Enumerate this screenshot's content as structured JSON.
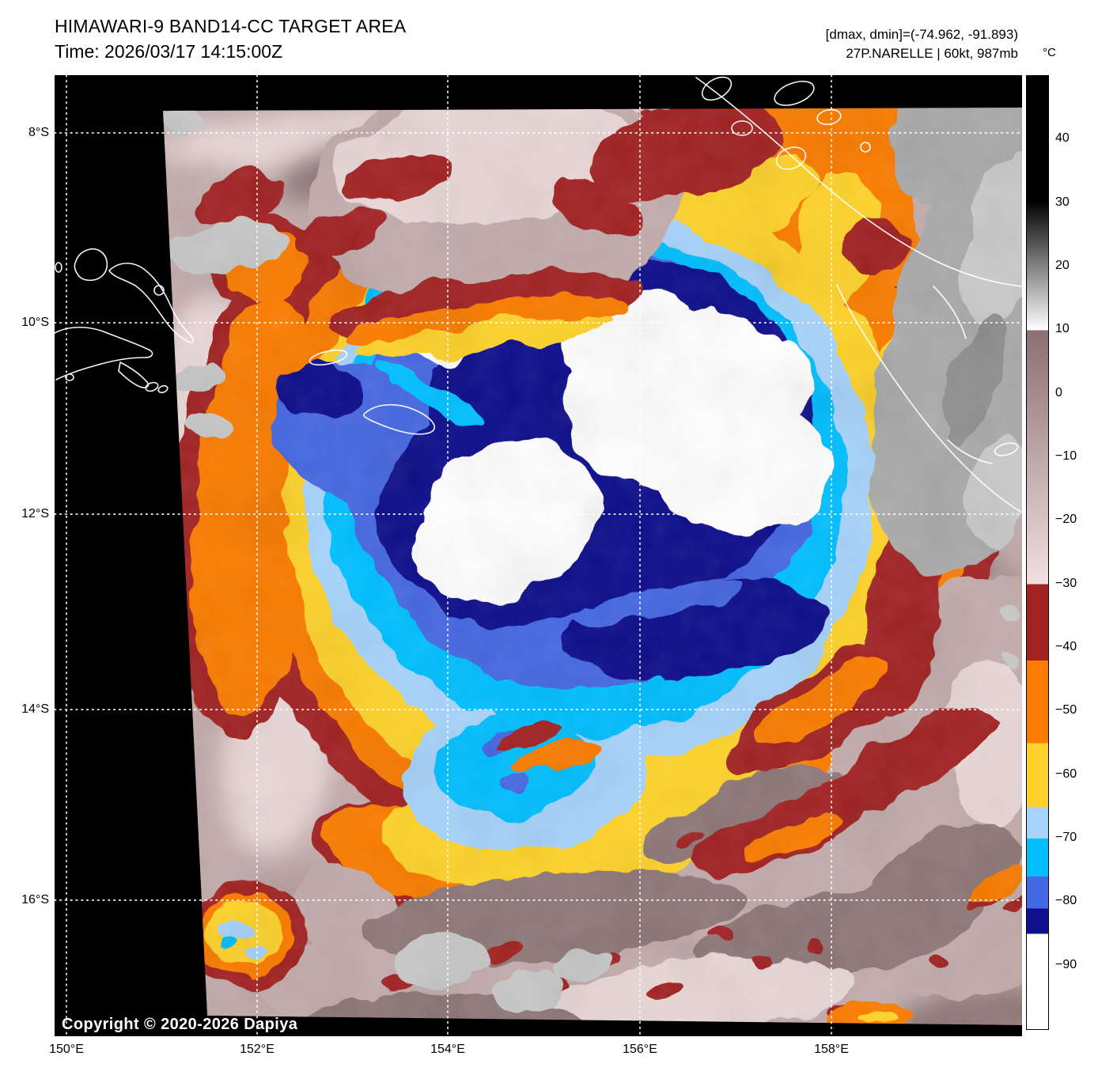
{
  "header": {
    "title": "HIMAWARI-9 BAND14-CC TARGET AREA",
    "time": "Time: 2026/03/17 14:15:00Z",
    "range_line": "[dmax, dmin]=(-74.962, -91.893)",
    "storm_line": "27P.NARELLE | 60kt, 987mb"
  },
  "colorbar": {
    "unit_label": "°C",
    "domain": [
      50,
      -100
    ],
    "tick_labels": [
      "40",
      "30",
      "20",
      "10",
      "0",
      "−10",
      "−20",
      "−30",
      "−40",
      "−50",
      "−60",
      "−70",
      "−80",
      "−90"
    ],
    "tick_values": [
      40,
      30,
      20,
      10,
      0,
      -10,
      -20,
      -30,
      -40,
      -50,
      -60,
      -70,
      -80,
      -90
    ],
    "segments": [
      {
        "from": 50,
        "to": 30,
        "type": "solid",
        "color": "#000000"
      },
      {
        "from": 30,
        "to": 10,
        "type": "gradient",
        "color_start": "#050505",
        "color_end": "#FFFFFF"
      },
      {
        "from": 10,
        "to": -30,
        "type": "gradient",
        "color_start": "#8A7070",
        "color_end": "#F2DFDF"
      },
      {
        "from": -30,
        "to": -42,
        "type": "solid",
        "color": "#A22222"
      },
      {
        "from": -42,
        "to": -55,
        "type": "solid",
        "color": "#FB7C00"
      },
      {
        "from": -55,
        "to": -65,
        "type": "solid",
        "color": "#FFD32C"
      },
      {
        "from": -65,
        "to": -70,
        "type": "solid",
        "color": "#A7D3FB"
      },
      {
        "from": -70,
        "to": -76,
        "type": "solid",
        "color": "#00BFFF"
      },
      {
        "from": -76,
        "to": -81,
        "type": "solid",
        "color": "#4467E3"
      },
      {
        "from": -81,
        "to": -85,
        "type": "solid",
        "color": "#10108C"
      },
      {
        "from": -85,
        "to": -100,
        "type": "solid",
        "color": "#FFFFFF"
      }
    ]
  },
  "axes": {
    "lat_labels": [
      "8°S",
      "10°S",
      "12°S",
      "14°S",
      "16°S"
    ],
    "lon_labels": [
      "150°E",
      "152°E",
      "154°E",
      "156°E",
      "158°E"
    ]
  },
  "footer": {
    "copyright": "Copyright © 2020-2026 Dapiya"
  },
  "palette": {
    "background_warm": "#C3ACAC",
    "background_dark": "#8F7878",
    "background_pink": "#E9D7D7",
    "cloud_gray": "#C8C8C8",
    "land_gray": "#ABABAB",
    "dark_red": "#A22222",
    "orange": "#FB7C00",
    "yellow": "#FFD32C",
    "light_blue": "#A7D3FB",
    "cyan": "#00BFFF",
    "royal_blue": "#4467E3",
    "navy": "#10108C",
    "overshoot_white": "#FFFFFF",
    "gridline": "#FFFFFF",
    "nodata_black": "#000000"
  }
}
